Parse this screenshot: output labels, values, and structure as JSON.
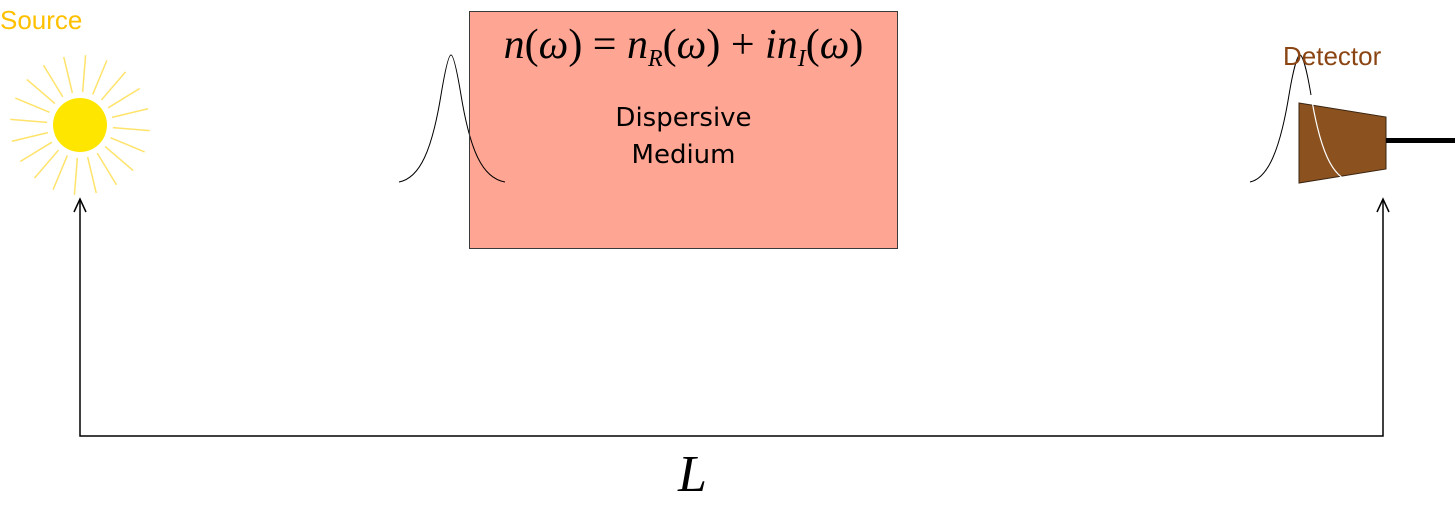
{
  "labels": {
    "source": "Source",
    "detector": "Detector",
    "length": "L"
  },
  "medium": {
    "equation": {
      "n": "n",
      "omega": "ω",
      "sub_R": "R",
      "sub_I": "I",
      "i": "i"
    },
    "line1": "Dispersive",
    "line2": "Medium"
  },
  "colors": {
    "source_label": "#FFC000",
    "sun_fill": "#FFFF00",
    "sun_rays": "#FFE36B",
    "sun_core": "#FFE600",
    "medium_fill": "#FFA593",
    "detector_label": "#8B4513",
    "detector_body": "#8B5220",
    "lines": "#000000",
    "pulse": "#000000"
  },
  "icons": {
    "source": "sun-icon",
    "detector": "detector-icon"
  }
}
